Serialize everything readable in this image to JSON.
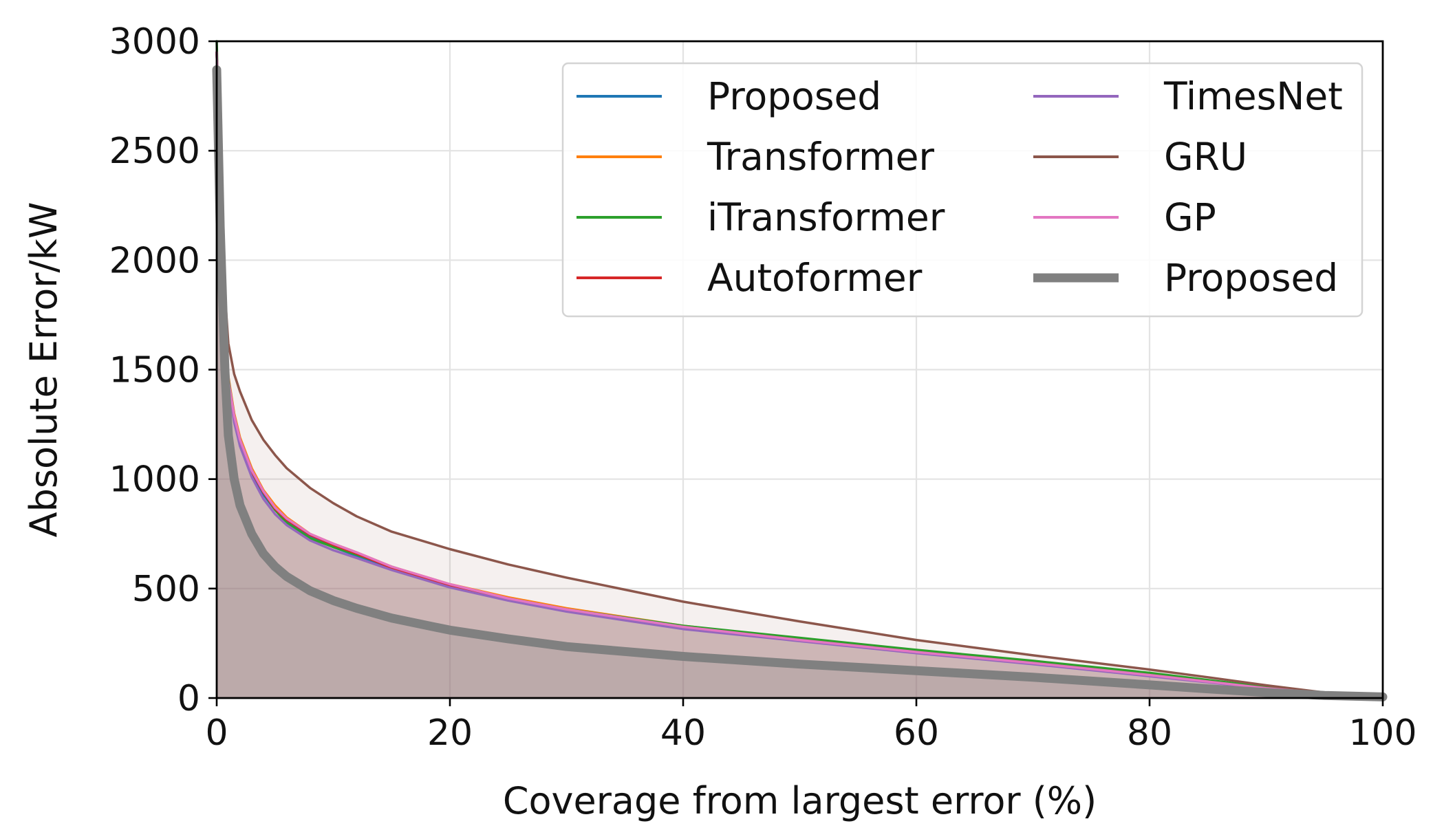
{
  "chart_data": {
    "type": "area",
    "title": "",
    "xlabel": "Coverage from largest error (%)",
    "ylabel": "Absolute Error/kW",
    "xlim": [
      0,
      100
    ],
    "ylim": [
      0,
      3000
    ],
    "xticks": [
      "0",
      "20",
      "40",
      "60",
      "80",
      "100"
    ],
    "yticks": [
      "0",
      "500",
      "1000",
      "1500",
      "2000",
      "2500",
      "3000"
    ],
    "grid": true,
    "legend_position": "top-right",
    "legend_columns": 2,
    "x": [
      0,
      0.3,
      0.7,
      1,
      1.5,
      2,
      3,
      4,
      5,
      6,
      8,
      10,
      12,
      15,
      20,
      25,
      30,
      40,
      50,
      60,
      70,
      80,
      85,
      90,
      95,
      100
    ],
    "series": [
      {
        "name": "Proposed",
        "color": "#1f77b4",
        "linewidth": "thin",
        "values": [
          2950,
          2300,
          1700,
          1450,
          1280,
          1170,
          1030,
          930,
          860,
          810,
          740,
          690,
          650,
          590,
          510,
          450,
          400,
          320,
          265,
          210,
          160,
          105,
          75,
          45,
          22,
          10
        ]
      },
      {
        "name": "Transformer",
        "color": "#ff7f0e",
        "linewidth": "thin",
        "values": [
          2950,
          2320,
          1720,
          1470,
          1300,
          1190,
          1050,
          950,
          880,
          825,
          750,
          705,
          665,
          600,
          520,
          460,
          410,
          330,
          270,
          215,
          165,
          110,
          80,
          48,
          24,
          10
        ]
      },
      {
        "name": "iTransformer",
        "color": "#2ca02c",
        "linewidth": "thin",
        "values": [
          3000,
          2330,
          1720,
          1460,
          1290,
          1180,
          1040,
          940,
          860,
          800,
          730,
          690,
          655,
          600,
          515,
          455,
          405,
          330,
          275,
          220,
          170,
          115,
          82,
          50,
          25,
          10
        ]
      },
      {
        "name": "Autoformer",
        "color": "#d62728",
        "linewidth": "thin",
        "values": [
          2950,
          2310,
          1710,
          1450,
          1285,
          1175,
          1035,
          940,
          865,
          815,
          745,
          700,
          660,
          595,
          515,
          455,
          400,
          325,
          265,
          210,
          160,
          105,
          75,
          45,
          22,
          10
        ]
      },
      {
        "name": "TimesNet",
        "color": "#9467bd",
        "linewidth": "thin",
        "values": [
          2950,
          2300,
          1690,
          1430,
          1260,
          1150,
          1010,
          910,
          840,
          790,
          720,
          675,
          640,
          585,
          505,
          445,
          395,
          315,
          260,
          205,
          155,
          100,
          72,
          42,
          20,
          10
        ]
      },
      {
        "name": "GRU",
        "color": "#8c564b",
        "linewidth": "thin",
        "values": [
          2950,
          2400,
          1850,
          1620,
          1480,
          1400,
          1270,
          1180,
          1110,
          1050,
          960,
          890,
          830,
          760,
          680,
          610,
          550,
          440,
          350,
          265,
          195,
          130,
          95,
          58,
          25,
          10
        ]
      },
      {
        "name": "GP",
        "color": "#e377c2",
        "linewidth": "thin",
        "values": [
          2950,
          2310,
          1710,
          1455,
          1290,
          1180,
          1040,
          945,
          870,
          820,
          750,
          705,
          665,
          600,
          520,
          455,
          405,
          325,
          265,
          210,
          160,
          105,
          75,
          45,
          22,
          10
        ]
      },
      {
        "name": "Proposed",
        "color": "#808080",
        "linewidth": "thick",
        "values": [
          2870,
          2150,
          1500,
          1200,
          1000,
          880,
          750,
          660,
          600,
          555,
          490,
          445,
          410,
          365,
          310,
          270,
          235,
          190,
          155,
          125,
          95,
          60,
          42,
          25,
          12,
          5
        ]
      }
    ]
  }
}
